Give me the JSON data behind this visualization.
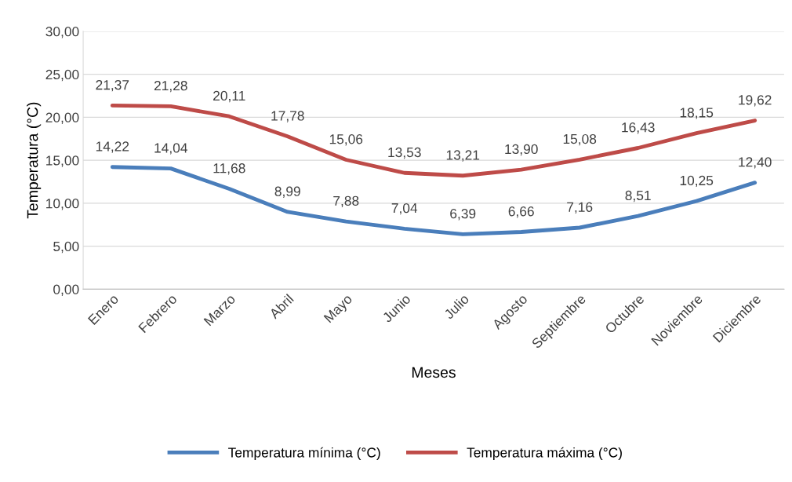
{
  "chart_data": {
    "type": "line",
    "xlabel": "Meses",
    "ylabel": "Temperatura (°C)",
    "categories": [
      "Enero",
      "Febrero",
      "Marzo",
      "Abril",
      "Mayo",
      "Junio",
      "Julio",
      "Agosto",
      "Septiembre",
      "Octubre",
      "Noviembre",
      "Diciembre"
    ],
    "series": [
      {
        "name": "Temperatura mínima (°C)",
        "color": "#4a7ebb",
        "values": [
          14.22,
          14.04,
          11.68,
          8.99,
          7.88,
          7.04,
          6.39,
          6.66,
          7.16,
          8.51,
          10.25,
          12.4
        ],
        "value_labels": [
          "14,22",
          "14,04",
          "11,68",
          "8,99",
          "7,88",
          "7,04",
          "6,39",
          "6,66",
          "7,16",
          "8,51",
          "10,25",
          "12,40"
        ]
      },
      {
        "name": "Temperatura máxima (°C)",
        "color": "#be4b48",
        "values": [
          21.37,
          21.28,
          20.11,
          17.78,
          15.06,
          13.53,
          13.21,
          13.9,
          15.08,
          16.43,
          18.15,
          19.62
        ],
        "value_labels": [
          "21,37",
          "21,28",
          "20,11",
          "17,78",
          "15,06",
          "13,53",
          "13,21",
          "13,90",
          "15,08",
          "16,43",
          "18,15",
          "19,62"
        ]
      }
    ],
    "ylim": [
      0,
      30
    ],
    "yticks": [
      {
        "value": 0,
        "label": "0,00"
      },
      {
        "value": 5,
        "label": "5,00"
      },
      {
        "value": 10,
        "label": "10,00"
      },
      {
        "value": 15,
        "label": "15,00"
      },
      {
        "value": 20,
        "label": "20,00"
      },
      {
        "value": 25,
        "label": "25,00"
      },
      {
        "value": 30,
        "label": "30,00"
      }
    ],
    "grid": "y",
    "legend": "bottom",
    "marker": "none",
    "line_style": "solid"
  }
}
